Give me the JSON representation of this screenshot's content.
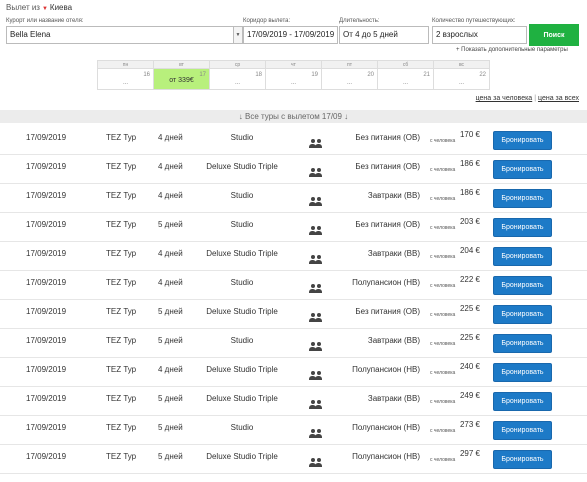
{
  "departure": {
    "label": "Вылет из",
    "city": "Киева"
  },
  "search": {
    "resort_label": "Курорт или название отеля:",
    "resort_value": "Bella Elena",
    "dates_label": "Коридор вылета:",
    "dates_value": "17/09/2019 - 17/09/2019",
    "duration_label": "Длительность:",
    "duration_value": "От 4 до 5 дней",
    "pax_label": "Количество путешествующих:",
    "pax_value": "2 взрослых",
    "search_button": "Поиск",
    "more_params": "+ Показать дополнительные параметры"
  },
  "calendar": [
    {
      "day": "пн",
      "num": "16",
      "price": "..."
    },
    {
      "day": "вт",
      "num": "17",
      "price": "от 339€",
      "active": true
    },
    {
      "day": "ср",
      "num": "18",
      "price": "..."
    },
    {
      "day": "чт",
      "num": "19",
      "price": "..."
    },
    {
      "day": "пт",
      "num": "20",
      "price": "..."
    },
    {
      "day": "сб",
      "num": "21",
      "price": "..."
    },
    {
      "day": "вс",
      "num": "22",
      "price": "..."
    }
  ],
  "price_toggle": {
    "per_person": "цена за человека",
    "separator": "|",
    "total": "цена за всех"
  },
  "all_tours": "↓ Все туры с вылетом 17/09 ↓",
  "tours": [
    {
      "date": "17/09/2019",
      "operator": "TEZ Тур",
      "duration": "4 дней",
      "room": "Studio",
      "meal": "Без питания (OB)",
      "price": "170 €",
      "price_sub": "с человека",
      "book": "Бронировать"
    },
    {
      "date": "17/09/2019",
      "operator": "TEZ Тур",
      "duration": "4 дней",
      "room": "Deluxe Studio Triple",
      "meal": "Без питания (OB)",
      "price": "186 €",
      "price_sub": "с человека",
      "book": "Бронировать"
    },
    {
      "date": "17/09/2019",
      "operator": "TEZ Тур",
      "duration": "4 дней",
      "room": "Studio",
      "meal": "Завтраки (BB)",
      "price": "186 €",
      "price_sub": "с человека",
      "book": "Бронировать"
    },
    {
      "date": "17/09/2019",
      "operator": "TEZ Тур",
      "duration": "5 дней",
      "room": "Studio",
      "meal": "Без питания (OB)",
      "price": "203 €",
      "price_sub": "с человека",
      "book": "Бронировать"
    },
    {
      "date": "17/09/2019",
      "operator": "TEZ Тур",
      "duration": "4 дней",
      "room": "Deluxe Studio Triple",
      "meal": "Завтраки (BB)",
      "price": "204 €",
      "price_sub": "с человека",
      "book": "Бронировать"
    },
    {
      "date": "17/09/2019",
      "operator": "TEZ Тур",
      "duration": "4 дней",
      "room": "Studio",
      "meal": "Полупансион (HB)",
      "price": "222 €",
      "price_sub": "с человека",
      "book": "Бронировать"
    },
    {
      "date": "17/09/2019",
      "operator": "TEZ Тур",
      "duration": "5 дней",
      "room": "Deluxe Studio Triple",
      "meal": "Без питания (OB)",
      "price": "225 €",
      "price_sub": "с человека",
      "book": "Бронировать"
    },
    {
      "date": "17/09/2019",
      "operator": "TEZ Тур",
      "duration": "5 дней",
      "room": "Studio",
      "meal": "Завтраки (BB)",
      "price": "225 €",
      "price_sub": "с человека",
      "book": "Бронировать"
    },
    {
      "date": "17/09/2019",
      "operator": "TEZ Тур",
      "duration": "4 дней",
      "room": "Deluxe Studio Triple",
      "meal": "Полупансион (HB)",
      "price": "240 €",
      "price_sub": "с человека",
      "book": "Бронировать"
    },
    {
      "date": "17/09/2019",
      "operator": "TEZ Тур",
      "duration": "5 дней",
      "room": "Deluxe Studio Triple",
      "meal": "Завтраки (BB)",
      "price": "249 €",
      "price_sub": "с человека",
      "book": "Бронировать"
    },
    {
      "date": "17/09/2019",
      "operator": "TEZ Тур",
      "duration": "5 дней",
      "room": "Studio",
      "meal": "Полупансион (HB)",
      "price": "273 €",
      "price_sub": "с человека",
      "book": "Бронировать"
    },
    {
      "date": "17/09/2019",
      "operator": "TEZ Тур",
      "duration": "5 дней",
      "room": "Deluxe Studio Triple",
      "meal": "Полупансион (HB)",
      "price": "297 €",
      "price_sub": "с человека",
      "book": "Бронировать"
    }
  ]
}
